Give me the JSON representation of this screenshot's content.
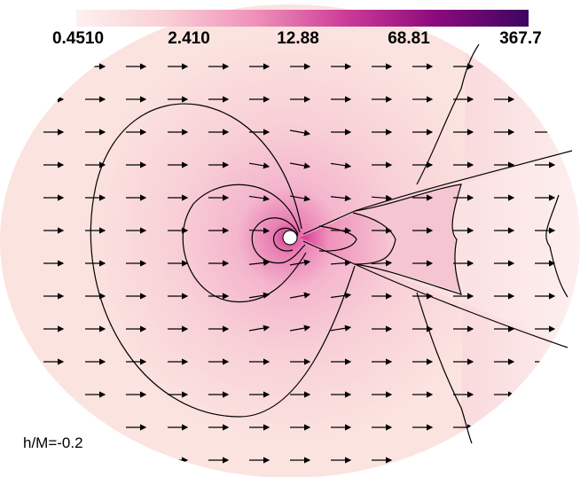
{
  "chart_data": {
    "type": "heatmap",
    "title": "",
    "xlabel": "",
    "ylabel": "",
    "colorbar": {
      "scale": "log",
      "ticks": [
        "0.4510",
        "2.410",
        "12.88",
        "68.81",
        "367.7"
      ],
      "tick_values": [
        0.451,
        2.41,
        12.88,
        68.81,
        367.7
      ],
      "colormap": [
        "#fdf1ef",
        "#f9cfd6",
        "#ee8fb8",
        "#cc3a97",
        "#8a0a7c",
        "#3d0660"
      ]
    },
    "annotation": "h/M=-0.2",
    "contours": {
      "levels": 6,
      "description_shape": "nested lobes around central compact object with downstream Mach cone"
    },
    "vector_field": {
      "direction": "left-to-right",
      "rows": 13
    },
    "colors": {
      "background_outer": "#fbe2df",
      "contour_line": "#000000",
      "arrow": "#000000",
      "object": "#ffffff"
    }
  }
}
